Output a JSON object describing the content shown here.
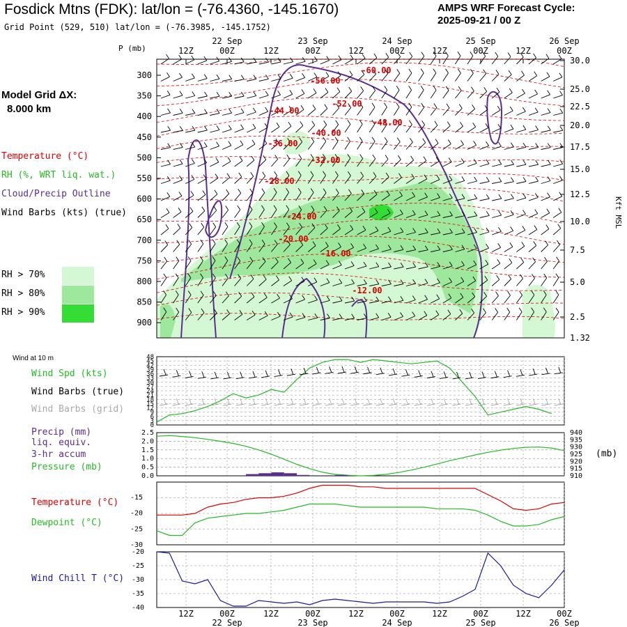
{
  "header": {
    "title": "Fosdick Mtns (FDK):  lat/lon = (-76.4360, -145.1670)",
    "subtitle": "Grid Point (529, 510) lat/lon = (-76.3985, -145.1752)",
    "cycle_line1": "AMPS WRF Forecast Cycle:",
    "cycle_line2": "2025-09-21 / 00  Z"
  },
  "model_grid": {
    "line1": "Model Grid ΔX:",
    "line2": "8.000 km"
  },
  "legend": {
    "temperature": "Temperature (°C)",
    "rh": "RH (%, WRT liq. wat.)",
    "cloud": "Cloud/Precip Outline",
    "wind": "Wind Barbs (kts) (true)",
    "rh70": "RH > 70%",
    "rh80": "RH > 80%",
    "rh90": "RH > 90%"
  },
  "colors": {
    "temperature": "#dd0000",
    "rh": "#22bb22",
    "cloud": "#5a2d91",
    "rh70": "#d4f7d4",
    "rh80": "#9de89d",
    "rh90": "#33dd33",
    "windchill": "#1a1aa0",
    "grid_barbs": "#aaaaaa"
  },
  "time_axis": {
    "top_ticks": [
      "12Z",
      "00Z",
      "12Z",
      "00Z",
      "12Z",
      "00Z",
      "12Z",
      "00Z",
      "12Z",
      "00Z"
    ],
    "top_dates": [
      "22 Sep",
      "23 Sep",
      "24 Sep",
      "25 Sep",
      "26 Sep"
    ],
    "bottom_ticks": [
      "12Z",
      "00Z",
      "12Z",
      "00Z",
      "12Z",
      "00Z",
      "12Z",
      "00Z",
      "12Z",
      "00Z"
    ],
    "bottom_dates": [
      "22 Sep",
      "23 Sep",
      "24 Sep",
      "25 Sep",
      "26 Sep"
    ]
  },
  "panel_labels": {
    "p_unit": "P (mb)",
    "kft": "Kft MSL",
    "wind10": "Wind at 10 m",
    "wind_spd": "Wind Spd (kts)",
    "wind_barbs_true": "Wind Barbs (true)",
    "wind_barbs_grid": "Wind Barbs (grid)",
    "precip1": "Precip (mm)",
    "precip2": "liq. equiv.",
    "precip3": "3-hr accum",
    "pressure": "Pressure (mb)",
    "pressure_unit": "(mb)",
    "temp": "Temperature (°C)",
    "dewpoint": "Dewpoint (°C)",
    "windchill": "Wind Chill T (°C)"
  },
  "chart_data": [
    {
      "type": "line",
      "panel": "cross-section",
      "pressure_levels_mb": [
        "300",
        "350",
        "400",
        "450",
        "500",
        "550",
        "600",
        "650",
        "700",
        "750",
        "800",
        "850",
        "900"
      ],
      "height_kft": [
        "30.0",
        "25.0",
        "22.5",
        "20.0",
        "17.5",
        "15.0",
        "12.5",
        "10.0",
        "7.5",
        "5.0",
        "2.5",
        "1.32"
      ],
      "isotherm_labels": [
        "-60.00",
        "-56.00",
        "-52.00",
        "-48.00",
        "-44.00",
        "-40.00",
        "-36.00",
        "-32.00",
        "-28.00",
        "-24.00",
        "-20.00",
        "-16.00",
        "-12.00"
      ]
    },
    {
      "type": "line",
      "panel": "wind-10m",
      "yticks": [
        "48",
        "45",
        "42",
        "39",
        "36",
        "33",
        "30",
        "27",
        "24",
        "21",
        "18",
        "15",
        "12",
        "9",
        "6",
        "3",
        "0"
      ],
      "ylim": [
        0,
        48
      ],
      "series": [
        {
          "name": "Wind Spd (kts)",
          "values": [
            2,
            7,
            8,
            10,
            13,
            17,
            22,
            19,
            21,
            25,
            23,
            32,
            40,
            44,
            46,
            46,
            44,
            46,
            45,
            44,
            43,
            44,
            45,
            40,
            30,
            20,
            7,
            9,
            11,
            13,
            11,
            8
          ]
        }
      ]
    },
    {
      "type": "line",
      "panel": "precip-pressure",
      "left_ticks": [
        "2.5",
        "2.0",
        "1.5",
        "1.0",
        "0.5",
        "0.0"
      ],
      "right_ticks": [
        "940",
        "935",
        "930",
        "925",
        "920",
        "915",
        "910"
      ],
      "ylim_left": [
        0,
        2.5
      ],
      "ylim_right": [
        910,
        940
      ],
      "series": [
        {
          "name": "Pressure (mb)",
          "values": [
            937.5,
            938,
            937.3,
            936.5,
            935.3,
            934,
            932.5,
            930.5,
            928,
            925,
            921.5,
            918,
            915,
            912.5,
            911,
            910.4,
            910,
            910.3,
            911,
            912.3,
            914,
            916,
            918.2,
            920.5,
            922.5,
            924.5,
            926.3,
            927.8,
            929,
            929.8,
            930,
            929.3,
            927.5
          ]
        },
        {
          "name": "Precip (mm)",
          "values": [
            0,
            0,
            0,
            0,
            0,
            0,
            0,
            0.1,
            0.15,
            0.2,
            0.15,
            0.05,
            0,
            0,
            0.05,
            0,
            0,
            0,
            0,
            0,
            0,
            0,
            0,
            0,
            0,
            0,
            0,
            0,
            0,
            0,
            0,
            0
          ]
        }
      ]
    },
    {
      "type": "line",
      "panel": "temp-dewpoint",
      "yticks": [
        "-15",
        "-20",
        "-25",
        "-30"
      ],
      "ylim": [
        -30,
        -10
      ],
      "series": [
        {
          "name": "Temperature (°C)",
          "values": [
            -20.5,
            -20.5,
            -20.5,
            -20,
            -18,
            -17,
            -16.5,
            -15.5,
            -15,
            -15,
            -14.5,
            -13.5,
            -12,
            -11,
            -11,
            -11,
            -11.5,
            -11.5,
            -12,
            -12,
            -12,
            -12,
            -12,
            -12,
            -12,
            -12,
            -14,
            -16,
            -18.5,
            -19,
            -18.5,
            -17,
            -16.5
          ]
        },
        {
          "name": "Dewpoint (°C)",
          "values": [
            -25.5,
            -27,
            -27,
            -23,
            -21.5,
            -21,
            -20.5,
            -20,
            -20,
            -19.5,
            -19,
            -18,
            -17,
            -17,
            -17,
            -17.5,
            -18,
            -18,
            -18,
            -18,
            -18,
            -18,
            -18.5,
            -18.5,
            -18.5,
            -19,
            -20.5,
            -22.5,
            -24,
            -24,
            -23.5,
            -22,
            -21
          ]
        }
      ]
    },
    {
      "type": "line",
      "panel": "wind-chill",
      "yticks": [
        "-20",
        "-25",
        "-30",
        "-35",
        "-40"
      ],
      "ylim": [
        -40,
        -20
      ],
      "series": [
        {
          "name": "Wind Chill T (°C)",
          "values": [
            -20,
            -20.5,
            -30.5,
            -31.5,
            -30,
            -37.5,
            -39.5,
            -39.5,
            -37.5,
            -38,
            -38.5,
            -38,
            -39,
            -37.5,
            -37,
            -37.5,
            -38,
            -38.5,
            -38,
            -38,
            -38,
            -38,
            -38.5,
            -38,
            -36,
            -33.5,
            -20.5,
            -25,
            -32,
            -35,
            -36.5,
            -32,
            -26.5
          ]
        }
      ]
    }
  ]
}
